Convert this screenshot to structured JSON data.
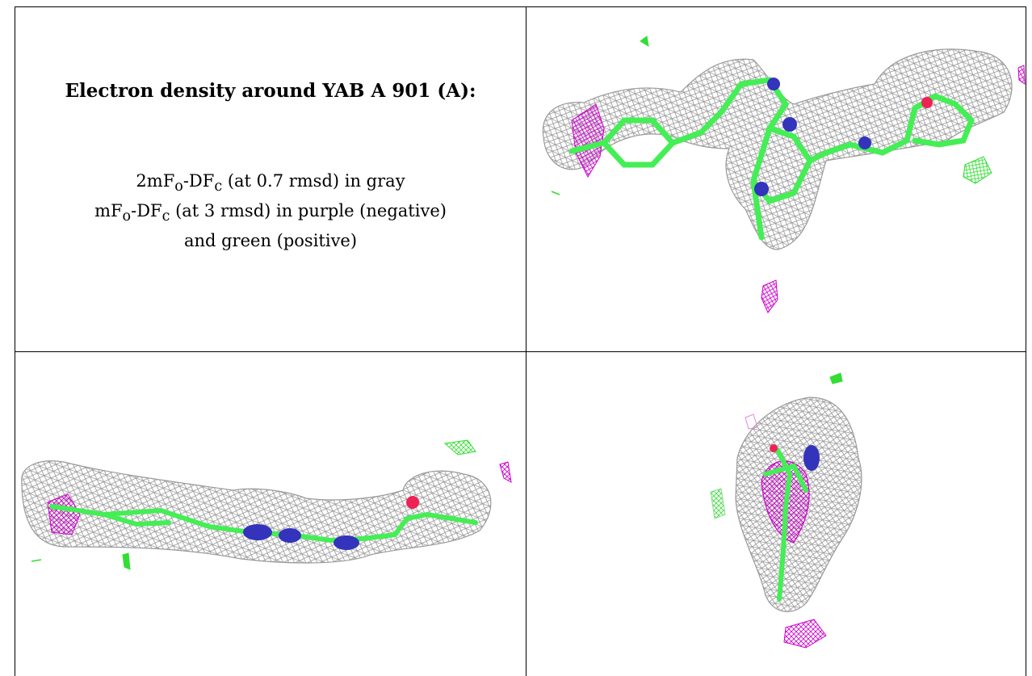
{
  "title": "Electron density around YAB A 901 (A):",
  "legend": {
    "line1_prefix": "2mF",
    "line1_sub1": "o",
    "line1_mid": "-DF",
    "line1_sub2": "c",
    "line1_suffix": " (at 0.7 rmsd) in gray",
    "line2_prefix": "mF",
    "line2_sub1": "o",
    "line2_mid": "-DF",
    "line2_sub2": "c",
    "line2_suffix": " (at 3 rmsd) in purple (negative)",
    "line3": "and green (positive)"
  },
  "colors": {
    "density_mesh": "#9a9a9a",
    "negative": "#cc00cc",
    "positive": "#33dd33",
    "carbon": "#44ee55",
    "nitrogen": "#3333bb",
    "oxygen": "#ee2255"
  },
  "panels": [
    {
      "view": "top"
    },
    {
      "view": "side"
    },
    {
      "view": "end"
    }
  ]
}
